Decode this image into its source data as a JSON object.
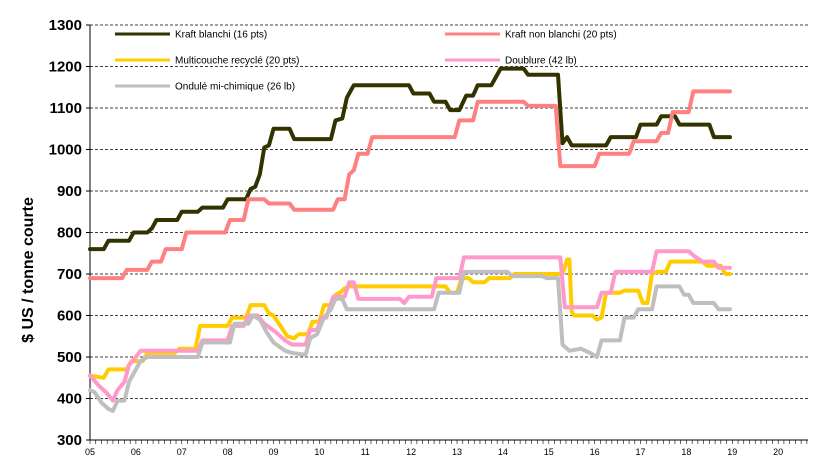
{
  "chart_data": {
    "type": "line",
    "ylabel": "$ US / tonne courte",
    "ylim": [
      300,
      1300
    ],
    "yticks": [
      "300",
      "400",
      "500",
      "600",
      "700",
      "800",
      "900",
      "1000",
      "1100",
      "1200",
      "1300"
    ],
    "xlim": [
      5,
      20.65
    ],
    "xticks": [
      "05",
      "06",
      "07",
      "08",
      "09",
      "10",
      "11",
      "12",
      "13",
      "14",
      "15",
      "16",
      "17",
      "18",
      "19",
      "20"
    ],
    "grid": "horizontal dashed",
    "legend_position": "top",
    "series": [
      {
        "name": "Kraft blanchi (16 pts)",
        "color": "#333300",
        "points": [
          [
            5.0,
            760
          ],
          [
            5.3,
            760
          ],
          [
            5.4,
            780
          ],
          [
            5.85,
            780
          ],
          [
            5.95,
            800
          ],
          [
            6.25,
            800
          ],
          [
            6.35,
            810
          ],
          [
            6.45,
            830
          ],
          [
            6.9,
            830
          ],
          [
            7.0,
            850
          ],
          [
            7.35,
            850
          ],
          [
            7.45,
            860
          ],
          [
            7.9,
            860
          ],
          [
            8.0,
            880
          ],
          [
            8.4,
            880
          ],
          [
            8.5,
            905
          ],
          [
            8.6,
            910
          ],
          [
            8.7,
            940
          ],
          [
            8.8,
            1005
          ],
          [
            8.9,
            1010
          ],
          [
            9.0,
            1050
          ],
          [
            9.35,
            1050
          ],
          [
            9.45,
            1025
          ],
          [
            10.25,
            1025
          ],
          [
            10.35,
            1070
          ],
          [
            10.5,
            1075
          ],
          [
            10.6,
            1125
          ],
          [
            10.75,
            1155
          ],
          [
            11.95,
            1155
          ],
          [
            12.05,
            1135
          ],
          [
            12.4,
            1135
          ],
          [
            12.5,
            1115
          ],
          [
            12.75,
            1115
          ],
          [
            12.85,
            1095
          ],
          [
            13.05,
            1095
          ],
          [
            13.2,
            1130
          ],
          [
            13.35,
            1130
          ],
          [
            13.45,
            1155
          ],
          [
            13.75,
            1155
          ],
          [
            13.85,
            1175
          ],
          [
            13.95,
            1195
          ],
          [
            14.45,
            1195
          ],
          [
            14.55,
            1180
          ],
          [
            15.2,
            1180
          ],
          [
            15.3,
            1015
          ],
          [
            15.4,
            1030
          ],
          [
            15.5,
            1010
          ],
          [
            16.25,
            1010
          ],
          [
            16.35,
            1030
          ],
          [
            16.9,
            1030
          ],
          [
            17.0,
            1060
          ],
          [
            17.35,
            1060
          ],
          [
            17.45,
            1080
          ],
          [
            17.75,
            1080
          ],
          [
            17.85,
            1060
          ],
          [
            18.5,
            1060
          ],
          [
            18.6,
            1030
          ],
          [
            18.95,
            1030
          ]
        ]
      },
      {
        "name": "Kraft non blanchi (20 pts)",
        "color": "#ff8080",
        "points": [
          [
            5.0,
            690
          ],
          [
            5.7,
            690
          ],
          [
            5.8,
            710
          ],
          [
            6.25,
            710
          ],
          [
            6.35,
            730
          ],
          [
            6.55,
            730
          ],
          [
            6.65,
            760
          ],
          [
            7.0,
            760
          ],
          [
            7.1,
            800
          ],
          [
            7.95,
            800
          ],
          [
            8.05,
            830
          ],
          [
            8.35,
            830
          ],
          [
            8.45,
            880
          ],
          [
            8.8,
            880
          ],
          [
            8.9,
            870
          ],
          [
            9.35,
            870
          ],
          [
            9.45,
            855
          ],
          [
            10.3,
            855
          ],
          [
            10.4,
            880
          ],
          [
            10.55,
            880
          ],
          [
            10.65,
            940
          ],
          [
            10.75,
            950
          ],
          [
            10.85,
            990
          ],
          [
            11.05,
            990
          ],
          [
            11.15,
            1030
          ],
          [
            12.95,
            1030
          ],
          [
            13.05,
            1070
          ],
          [
            13.35,
            1070
          ],
          [
            13.45,
            1115
          ],
          [
            14.45,
            1115
          ],
          [
            14.55,
            1105
          ],
          [
            15.15,
            1105
          ],
          [
            15.25,
            960
          ],
          [
            16.0,
            960
          ],
          [
            16.1,
            990
          ],
          [
            16.75,
            990
          ],
          [
            16.85,
            1020
          ],
          [
            17.35,
            1020
          ],
          [
            17.45,
            1040
          ],
          [
            17.6,
            1040
          ],
          [
            17.7,
            1090
          ],
          [
            18.05,
            1090
          ],
          [
            18.15,
            1140
          ],
          [
            18.95,
            1140
          ]
        ]
      },
      {
        "name": "Multicouche recyclé (20 pts)",
        "color": "#ffcc00",
        "points": [
          [
            5.0,
            455
          ],
          [
            5.3,
            450
          ],
          [
            5.4,
            470
          ],
          [
            5.8,
            470
          ],
          [
            5.9,
            490
          ],
          [
            6.15,
            490
          ],
          [
            6.25,
            510
          ],
          [
            6.85,
            510
          ],
          [
            6.95,
            520
          ],
          [
            7.3,
            520
          ],
          [
            7.4,
            575
          ],
          [
            8.0,
            575
          ],
          [
            8.1,
            595
          ],
          [
            8.4,
            595
          ],
          [
            8.5,
            625
          ],
          [
            8.8,
            625
          ],
          [
            8.9,
            605
          ],
          [
            9.0,
            600
          ],
          [
            9.3,
            550
          ],
          [
            9.45,
            545
          ],
          [
            9.55,
            555
          ],
          [
            9.75,
            555
          ],
          [
            9.85,
            585
          ],
          [
            10.0,
            585
          ],
          [
            10.1,
            625
          ],
          [
            10.25,
            625
          ],
          [
            10.35,
            650
          ],
          [
            10.45,
            655
          ],
          [
            10.55,
            665
          ],
          [
            10.65,
            670
          ],
          [
            12.75,
            670
          ],
          [
            12.85,
            655
          ],
          [
            13.0,
            655
          ],
          [
            13.1,
            690
          ],
          [
            13.25,
            690
          ],
          [
            13.35,
            680
          ],
          [
            13.6,
            680
          ],
          [
            13.7,
            690
          ],
          [
            14.15,
            690
          ],
          [
            14.25,
            700
          ],
          [
            15.3,
            700
          ],
          [
            15.4,
            735
          ],
          [
            15.45,
            735
          ],
          [
            15.5,
            610
          ],
          [
            15.55,
            600
          ],
          [
            15.95,
            600
          ],
          [
            16.05,
            590
          ],
          [
            16.15,
            595
          ],
          [
            16.25,
            655
          ],
          [
            16.55,
            655
          ],
          [
            16.65,
            660
          ],
          [
            16.95,
            660
          ],
          [
            17.05,
            630
          ],
          [
            17.15,
            630
          ],
          [
            17.25,
            700
          ],
          [
            17.35,
            705
          ],
          [
            17.55,
            705
          ],
          [
            17.65,
            730
          ],
          [
            18.35,
            730
          ],
          [
            18.45,
            720
          ],
          [
            18.75,
            720
          ],
          [
            18.85,
            700
          ],
          [
            18.95,
            700
          ]
        ]
      },
      {
        "name": "Doublure (42 lb)",
        "color": "#ff99cc",
        "points": [
          [
            5.0,
            455
          ],
          [
            5.2,
            430
          ],
          [
            5.35,
            415
          ],
          [
            5.5,
            395
          ],
          [
            5.6,
            420
          ],
          [
            5.75,
            440
          ],
          [
            5.85,
            480
          ],
          [
            6.0,
            500
          ],
          [
            6.1,
            515
          ],
          [
            7.35,
            515
          ],
          [
            7.45,
            540
          ],
          [
            8.0,
            540
          ],
          [
            8.1,
            575
          ],
          [
            8.35,
            575
          ],
          [
            8.45,
            600
          ],
          [
            8.65,
            600
          ],
          [
            8.8,
            580
          ],
          [
            9.05,
            560
          ],
          [
            9.25,
            540
          ],
          [
            9.4,
            530
          ],
          [
            9.7,
            530
          ],
          [
            9.8,
            565
          ],
          [
            9.95,
            565
          ],
          [
            10.05,
            595
          ],
          [
            10.15,
            595
          ],
          [
            10.3,
            645
          ],
          [
            10.55,
            645
          ],
          [
            10.65,
            680
          ],
          [
            10.75,
            680
          ],
          [
            10.85,
            640
          ],
          [
            11.75,
            640
          ],
          [
            11.85,
            630
          ],
          [
            11.95,
            645
          ],
          [
            12.45,
            645
          ],
          [
            12.55,
            690
          ],
          [
            13.05,
            690
          ],
          [
            13.15,
            740
          ],
          [
            15.25,
            740
          ],
          [
            15.35,
            620
          ],
          [
            16.05,
            620
          ],
          [
            16.15,
            655
          ],
          [
            16.35,
            655
          ],
          [
            16.45,
            705
          ],
          [
            17.25,
            705
          ],
          [
            17.35,
            755
          ],
          [
            18.05,
            755
          ],
          [
            18.15,
            745
          ],
          [
            18.35,
            730
          ],
          [
            18.6,
            730
          ],
          [
            18.7,
            715
          ],
          [
            18.95,
            715
          ]
        ]
      },
      {
        "name": "Ondulé mi-chimique (26 lb)",
        "color": "#bfbfbf",
        "points": [
          [
            5.0,
            420
          ],
          [
            5.1,
            415
          ],
          [
            5.25,
            390
          ],
          [
            5.4,
            375
          ],
          [
            5.5,
            370
          ],
          [
            5.6,
            395
          ],
          [
            5.75,
            395
          ],
          [
            5.85,
            440
          ],
          [
            6.0,
            470
          ],
          [
            6.1,
            490
          ],
          [
            6.25,
            500
          ],
          [
            7.35,
            500
          ],
          [
            7.45,
            535
          ],
          [
            8.05,
            535
          ],
          [
            8.15,
            580
          ],
          [
            8.45,
            580
          ],
          [
            8.55,
            600
          ],
          [
            8.7,
            590
          ],
          [
            8.85,
            560
          ],
          [
            9.0,
            535
          ],
          [
            9.25,
            515
          ],
          [
            9.4,
            510
          ],
          [
            9.7,
            505
          ],
          [
            9.8,
            545
          ],
          [
            9.95,
            555
          ],
          [
            10.1,
            595
          ],
          [
            10.25,
            615
          ],
          [
            10.35,
            640
          ],
          [
            10.5,
            640
          ],
          [
            10.6,
            615
          ],
          [
            12.5,
            615
          ],
          [
            12.6,
            655
          ],
          [
            13.05,
            655
          ],
          [
            13.15,
            705
          ],
          [
            14.1,
            705
          ],
          [
            14.2,
            695
          ],
          [
            14.85,
            695
          ],
          [
            14.95,
            690
          ],
          [
            15.2,
            690
          ],
          [
            15.3,
            530
          ],
          [
            15.45,
            515
          ],
          [
            15.7,
            520
          ],
          [
            15.9,
            510
          ],
          [
            16.05,
            500
          ],
          [
            16.15,
            540
          ],
          [
            16.55,
            540
          ],
          [
            16.65,
            595
          ],
          [
            16.85,
            595
          ],
          [
            16.95,
            615
          ],
          [
            17.25,
            615
          ],
          [
            17.35,
            670
          ],
          [
            17.85,
            670
          ],
          [
            17.95,
            650
          ],
          [
            18.05,
            650
          ],
          [
            18.15,
            630
          ],
          [
            18.6,
            630
          ],
          [
            18.7,
            615
          ],
          [
            18.95,
            615
          ]
        ]
      }
    ]
  }
}
